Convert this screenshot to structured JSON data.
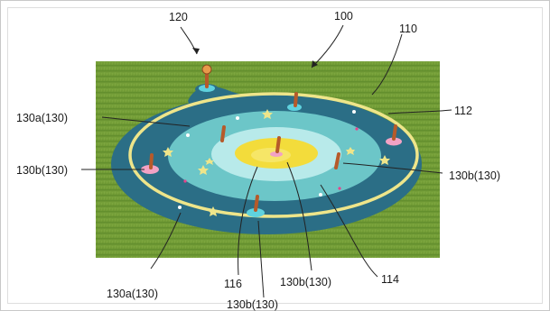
{
  "figure": {
    "labels": {
      "l100": "100",
      "l110": "110",
      "l120": "120",
      "l112": "112",
      "l114": "114",
      "l116": "116",
      "l130a_top": "130a(130)",
      "l130a_bottom": "130a(130)",
      "l130b_left": "130b(130)",
      "l130b_right": "130b(130)",
      "l130b_center": "130b(130)",
      "l130b_bottom": "130b(130)"
    }
  },
  "colors": {
    "grass": "#6f9a35",
    "outer_ring": "#2b6e86",
    "yellow_ring": "#eee58a",
    "mid_ring": "#6cc6c8",
    "inner_light": "#b8eaea",
    "center_yellow": "#f3dc3b",
    "post": "#b65a2a",
    "pink_pad": "#f2a2c4",
    "cyan_pad": "#5fd2de"
  }
}
